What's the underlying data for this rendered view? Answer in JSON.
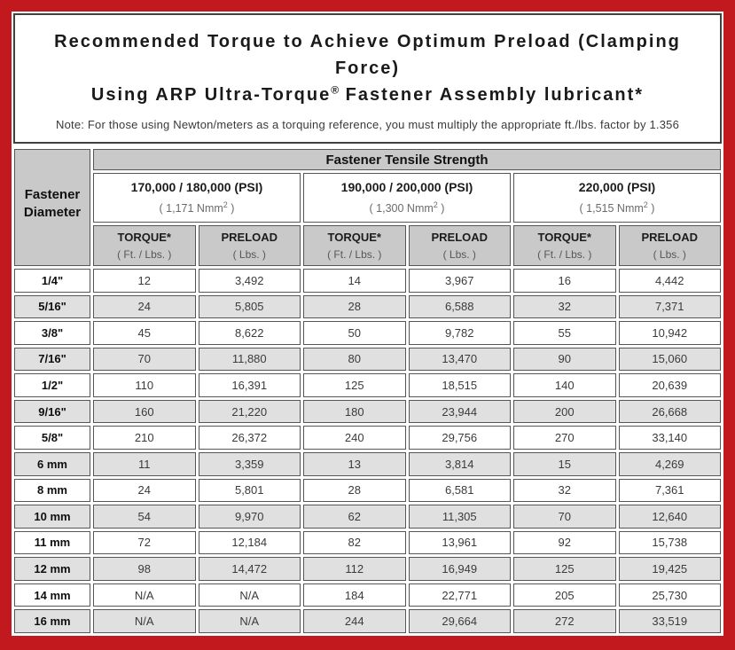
{
  "header": {
    "title_line1": "Recommended Torque to Achieve Optimum Preload (Clamping Force)",
    "title_line2_before_reg": "Using ARP Ultra-Torque",
    "title_line2_reg_mark": "®",
    "title_line2_after_reg": " Fastener Assembly lubricant*",
    "note": "Note: For those using Newton/meters as a torquing reference, you must multiply the appropriate ft./lbs. factor by 1.356"
  },
  "table": {
    "tensile_strength_header": "Fastener Tensile Strength",
    "diameter_header_line1": "Fastener",
    "diameter_header_line2": "Diameter",
    "strength_groups": [
      {
        "psi_label": "170,000 / 180,000 (PSI)",
        "nmm_label": "( 1,171 Nmm",
        "nmm_sup": "2",
        "nmm_close": " )"
      },
      {
        "psi_label": "190,000 / 200,000 (PSI)",
        "nmm_label": "( 1,300 Nmm",
        "nmm_sup": "2",
        "nmm_close": " )"
      },
      {
        "psi_label": "220,000 (PSI)",
        "nmm_label": "( 1,515 Nmm",
        "nmm_sup": "2",
        "nmm_close": " )"
      }
    ],
    "column_headers": {
      "torque_label": "TORQUE*",
      "torque_sub": "( Ft. / Lbs. )",
      "preload_label": "PRELOAD",
      "preload_sub": "( Lbs. )"
    },
    "rows": [
      {
        "diameter": "1/4\"",
        "values": [
          "12",
          "3,492",
          "14",
          "3,967",
          "16",
          "4,442"
        ]
      },
      {
        "diameter": "5/16\"",
        "values": [
          "24",
          "5,805",
          "28",
          "6,588",
          "32",
          "7,371"
        ]
      },
      {
        "diameter": "3/8\"",
        "values": [
          "45",
          "8,622",
          "50",
          "9,782",
          "55",
          "10,942"
        ]
      },
      {
        "diameter": "7/16\"",
        "values": [
          "70",
          "11,880",
          "80",
          "13,470",
          "90",
          "15,060"
        ]
      },
      {
        "diameter": "1/2\"",
        "values": [
          "110",
          "16,391",
          "125",
          "18,515",
          "140",
          "20,639"
        ]
      },
      {
        "diameter": "9/16\"",
        "values": [
          "160",
          "21,220",
          "180",
          "23,944",
          "200",
          "26,668"
        ]
      },
      {
        "diameter": "5/8\"",
        "values": [
          "210",
          "26,372",
          "240",
          "29,756",
          "270",
          "33,140"
        ]
      },
      {
        "diameter": "6 mm",
        "values": [
          "11",
          "3,359",
          "13",
          "3,814",
          "15",
          "4,269"
        ]
      },
      {
        "diameter": "8 mm",
        "values": [
          "24",
          "5,801",
          "28",
          "6,581",
          "32",
          "7,361"
        ]
      },
      {
        "diameter": "10 mm",
        "values": [
          "54",
          "9,970",
          "62",
          "11,305",
          "70",
          "12,640"
        ]
      },
      {
        "diameter": "11 mm",
        "values": [
          "72",
          "12,184",
          "82",
          "13,961",
          "92",
          "15,738"
        ]
      },
      {
        "diameter": "12 mm",
        "values": [
          "98",
          "14,472",
          "112",
          "16,949",
          "125",
          "19,425"
        ]
      },
      {
        "diameter": "14 mm",
        "values": [
          "N/A",
          "N/A",
          "184",
          "22,771",
          "205",
          "25,730"
        ]
      },
      {
        "diameter": "16 mm",
        "values": [
          "N/A",
          "N/A",
          "244",
          "29,664",
          "272",
          "33,519"
        ]
      }
    ]
  },
  "colors": {
    "frame_red": "#c2191f",
    "header_gray": "#c9c9c9",
    "row_alt_gray": "#e0e0e0",
    "cell_border": "#55565a",
    "title_box_border": "#414141"
  }
}
